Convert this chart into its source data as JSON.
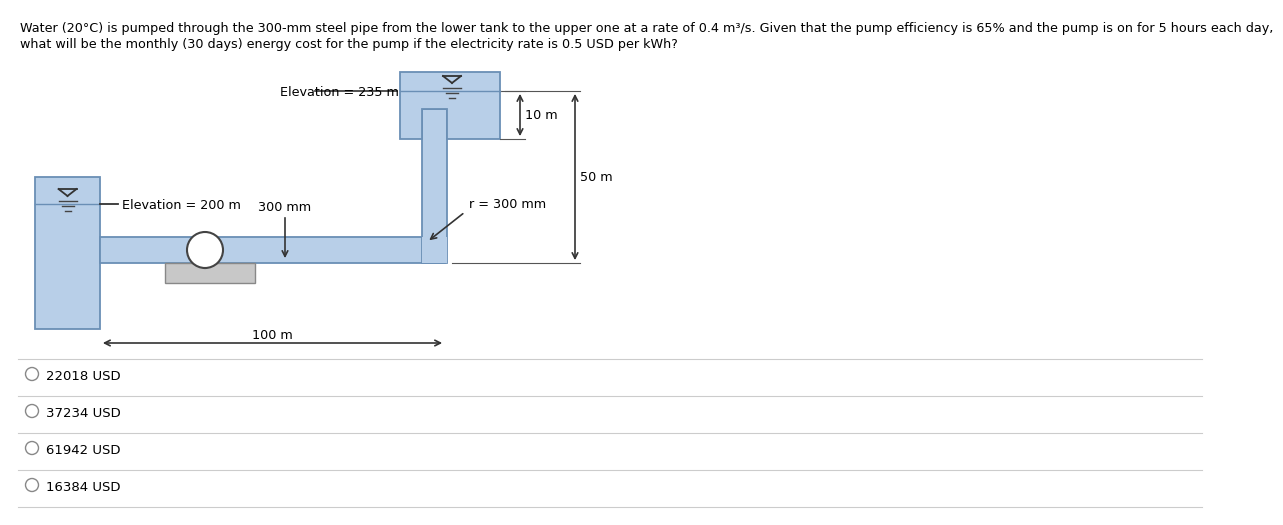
{
  "title_text": "Water (20°C) is pumped through the 300-mm steel pipe from the lower tank to the upper one at a rate of 0.4 m³/s. Given that the pump efficiency is 65% and the pump is on for 5 hours each day,",
  "title_text2": "what will be the monthly (30 days) energy cost for the pump if the electricity rate is 0.5 USD per kWh?",
  "options": [
    "22018 USD",
    "37234 USD",
    "61942 USD",
    "16384 USD"
  ],
  "bg_color": "#ffffff",
  "pipe_fill": "#b8cfe8",
  "pipe_edge": "#6a8fb5",
  "tank_fill": "#b8cfe8",
  "tank_edge": "#6a8fb5",
  "pump_fill": "#ffffff",
  "pump_edge": "#444444",
  "base_fill": "#c8c8c8",
  "base_edge": "#888888",
  "text_color": "#000000",
  "line_color": "#333333",
  "option_circle_color": "#888888",
  "separator_color": "#cccccc"
}
